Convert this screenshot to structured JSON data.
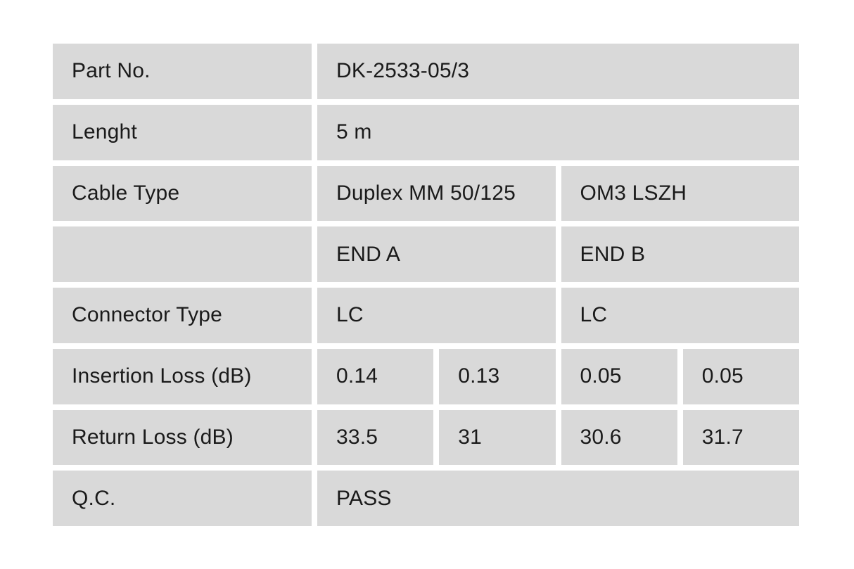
{
  "table": {
    "title": "cable-qc-spec-table",
    "colors": {
      "cell_background": "#d9d9d9",
      "gap_background": "#ffffff",
      "text": "#1a1a1a"
    },
    "rows": [
      {
        "label": "Part No.",
        "value": "DK-2533-05/3"
      },
      {
        "label": "Lenght",
        "value": "5 m"
      },
      {
        "label": "Cable Type",
        "end_a": "Duplex MM 50/125",
        "end_b": "OM3 LSZH"
      },
      {
        "label": "",
        "end_a": "END A",
        "end_b": "END B"
      },
      {
        "label": "Connector Type",
        "end_a": "LC",
        "end_b": "LC"
      },
      {
        "label": "Insertion Loss (dB)",
        "values": [
          "0.14",
          "0.13",
          "0.05",
          "0.05"
        ]
      },
      {
        "label": "Return Loss (dB)",
        "values": [
          "33.5",
          "31",
          "30.6",
          "31.7"
        ]
      },
      {
        "label": "Q.C.",
        "value": "PASS"
      }
    ]
  }
}
